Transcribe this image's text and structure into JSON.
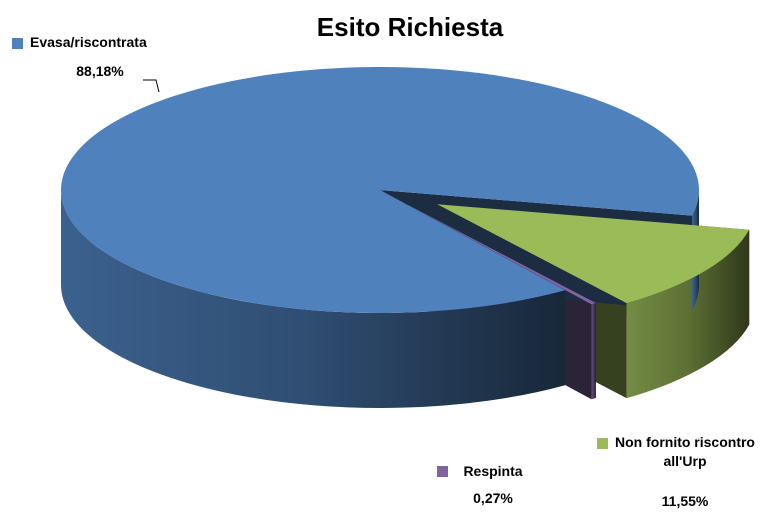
{
  "chart_data": {
    "type": "pie",
    "title": "Esito Richiesta",
    "categories": [
      "Non fornito riscontro all'Urp",
      "Respinta",
      "Evasa/riscontrata"
    ],
    "values": [
      11.55,
      0.27,
      88.18
    ],
    "value_labels": [
      "11,55%",
      "0,27%",
      "88,18%"
    ],
    "colors": [
      "#9bbb59",
      "#8064a2",
      "#4f81bd"
    ],
    "three_d": true
  }
}
